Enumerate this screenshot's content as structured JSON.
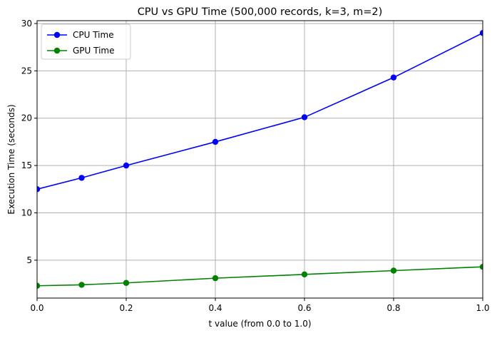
{
  "chart_data": {
    "type": "line",
    "title": "CPU vs GPU Time (500,000 records, k=3, m=2)",
    "xlabel": "t value (from 0.0 to 1.0)",
    "ylabel": "Execution Time (seconds)",
    "xlim": [
      0.0,
      1.0
    ],
    "ylim": [
      1.0,
      30.3
    ],
    "x_ticks": [
      0.0,
      0.2,
      0.4,
      0.6,
      0.8,
      1.0
    ],
    "x_tick_labels": [
      "0.0",
      "0.2",
      "0.4",
      "0.6",
      "0.8",
      "1.0"
    ],
    "y_ticks": [
      5,
      10,
      15,
      20,
      25,
      30
    ],
    "y_tick_labels": [
      "5",
      "10",
      "15",
      "20",
      "25",
      "30"
    ],
    "grid": true,
    "legend_position": "top-left",
    "series": [
      {
        "name": "CPU Time",
        "color": "#0000ff",
        "x": [
          0.0,
          0.1,
          0.2,
          0.4,
          0.6,
          0.8,
          1.0
        ],
        "y": [
          12.5,
          13.7,
          15.0,
          17.5,
          20.1,
          24.3,
          29.0
        ]
      },
      {
        "name": "GPU Time",
        "color": "#008000",
        "x": [
          0.0,
          0.1,
          0.2,
          0.4,
          0.6,
          0.8,
          1.0
        ],
        "y": [
          2.3,
          2.4,
          2.6,
          3.1,
          3.5,
          3.9,
          4.3
        ]
      }
    ]
  }
}
